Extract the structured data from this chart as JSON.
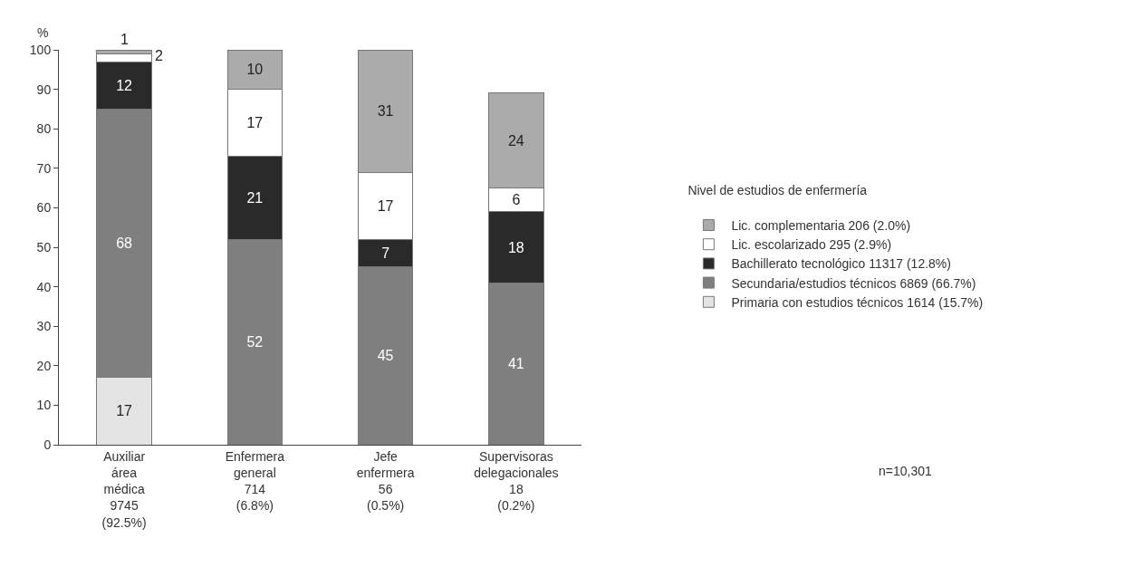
{
  "chart_data": {
    "type": "bar",
    "stacked": true,
    "ylabel": "%",
    "legend_title": "Nivel de estudios de enfermería",
    "legend": "right",
    "categories": [
      "Auxiliar\nárea\nmédica\n9745\n(92.5%)",
      "Enfermera\ngeneral\n714\n(6.8%)",
      "Jefe\nenfermera\n56\n(0.5%)",
      "Supervisoras\ndelegacionales\n18\n(0.2%)"
    ],
    "series": [
      {
        "name": "Primaria con estudios técnicos 1614 (15.7%)",
        "color": "#e4e4e4",
        "values": [
          17,
          null,
          null,
          null
        ]
      },
      {
        "name": "Secundaria/estudios técnicos 6869 (66.7%)",
        "color": "#7f7f7f",
        "values": [
          68,
          52,
          45,
          41
        ]
      },
      {
        "name": "Bachillerato tecnológico 11317 (12.8%)",
        "color": "#2a2a2a",
        "values": [
          12,
          21,
          7,
          18
        ]
      },
      {
        "name": "Lic. escolarizado 295 (2.9%)",
        "color": "#ffffff",
        "values": [
          2,
          17,
          17,
          6
        ]
      },
      {
        "name": "Lic. complementaria 206 (2.0%)",
        "color": "#ababab",
        "values": [
          1,
          10,
          31,
          24
        ]
      }
    ],
    "data_labels": true,
    "ylim": [
      0,
      100
    ],
    "yticks": [
      0,
      10,
      20,
      30,
      40,
      50,
      60,
      70,
      80,
      90,
      100
    ],
    "grid": false,
    "annotations": [
      "n=10,301"
    ]
  }
}
